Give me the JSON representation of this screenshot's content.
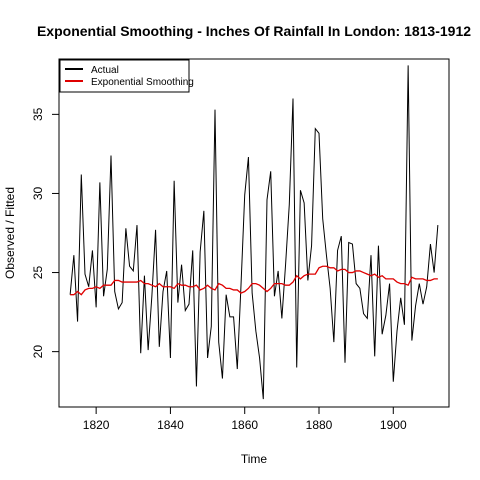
{
  "chart_data": {
    "type": "line",
    "title": "Exponential Smoothing - Inches Of Rainfall In London: 1813-1912",
    "xlabel": "Time",
    "ylabel": "Observed / Fitted",
    "xlim": [
      1810,
      1915
    ],
    "ylim": [
      16.5,
      38.5
    ],
    "x_ticks": [
      1820,
      1840,
      1860,
      1880,
      1900
    ],
    "y_ticks": [
      20,
      25,
      30,
      35
    ],
    "legend_position": "top-left",
    "x": [
      1813,
      1814,
      1815,
      1816,
      1817,
      1818,
      1819,
      1820,
      1821,
      1822,
      1823,
      1824,
      1825,
      1826,
      1827,
      1828,
      1829,
      1830,
      1831,
      1832,
      1833,
      1834,
      1835,
      1836,
      1837,
      1838,
      1839,
      1840,
      1841,
      1842,
      1843,
      1844,
      1845,
      1846,
      1847,
      1848,
      1849,
      1850,
      1851,
      1852,
      1853,
      1854,
      1855,
      1856,
      1857,
      1858,
      1859,
      1860,
      1861,
      1862,
      1863,
      1864,
      1865,
      1866,
      1867,
      1868,
      1869,
      1870,
      1871,
      1872,
      1873,
      1874,
      1875,
      1876,
      1877,
      1878,
      1879,
      1880,
      1881,
      1882,
      1883,
      1884,
      1885,
      1886,
      1887,
      1888,
      1889,
      1890,
      1891,
      1892,
      1893,
      1894,
      1895,
      1896,
      1897,
      1898,
      1899,
      1900,
      1901,
      1902,
      1903,
      1904,
      1905,
      1906,
      1907,
      1908,
      1909,
      1910,
      1911,
      1912
    ],
    "series": [
      {
        "name": "Actual",
        "color": "#000000",
        "values": [
          23.6,
          26.1,
          21.9,
          31.2,
          24.9,
          24.1,
          26.4,
          22.8,
          30.7,
          23.5,
          25.2,
          32.4,
          23.8,
          22.7,
          23.1,
          27.8,
          25.4,
          25.1,
          28.0,
          19.9,
          24.8,
          20.1,
          23.5,
          27.7,
          20.3,
          23.8,
          25.1,
          19.6,
          30.8,
          23.1,
          25.5,
          22.6,
          23.0,
          26.4,
          17.8,
          26.3,
          28.9,
          19.6,
          21.6,
          35.3,
          20.6,
          18.3,
          23.6,
          22.2,
          22.2,
          18.9,
          24.2,
          29.9,
          32.3,
          23.7,
          21.3,
          19.6,
          17.0,
          29.6,
          31.4,
          23.5,
          25.1,
          22.1,
          25.5,
          29.3,
          36.0,
          19.0,
          30.2,
          29.4,
          24.5,
          26.7,
          34.1,
          33.8,
          28.4,
          26.1,
          24.0,
          20.6,
          26.4,
          27.3,
          19.3,
          26.9,
          26.8,
          24.3,
          24.0,
          22.4,
          22.1,
          26.1,
          19.7,
          26.7,
          21.1,
          22.3,
          24.3,
          18.1,
          21.3,
          23.4,
          21.7,
          38.1,
          20.7,
          22.9,
          24.3,
          23.0,
          24.1,
          26.8,
          25.0,
          28.0
        ]
      },
      {
        "name": "Exponential Smoothing",
        "color": "#df0000",
        "values": [
          23.6,
          23.6,
          23.8,
          23.6,
          23.9,
          24.0,
          24.0,
          24.1,
          24.0,
          24.2,
          24.2,
          24.2,
          24.5,
          24.5,
          24.4,
          24.4,
          24.4,
          24.4,
          24.4,
          24.5,
          24.3,
          24.3,
          24.2,
          24.1,
          24.3,
          24.1,
          24.1,
          24.1,
          24.0,
          24.3,
          24.2,
          24.2,
          24.1,
          24.1,
          24.2,
          23.9,
          24.0,
          24.2,
          24.0,
          23.9,
          24.3,
          24.2,
          24.0,
          24.0,
          23.9,
          23.9,
          23.7,
          23.8,
          24.0,
          24.3,
          24.3,
          24.2,
          24.0,
          23.8,
          24.0,
          24.3,
          24.3,
          24.3,
          24.2,
          24.2,
          24.4,
          24.8,
          24.6,
          24.8,
          24.9,
          24.9,
          24.9,
          25.3,
          25.4,
          25.4,
          25.3,
          25.3,
          25.1,
          25.2,
          25.2,
          25.0,
          25.0,
          25.1,
          25.1,
          25.0,
          24.9,
          24.8,
          24.9,
          24.7,
          24.8,
          24.6,
          24.6,
          24.6,
          24.4,
          24.3,
          24.3,
          24.2,
          24.7,
          24.6,
          24.6,
          24.6,
          24.5,
          24.5,
          24.6,
          24.6
        ]
      }
    ]
  }
}
